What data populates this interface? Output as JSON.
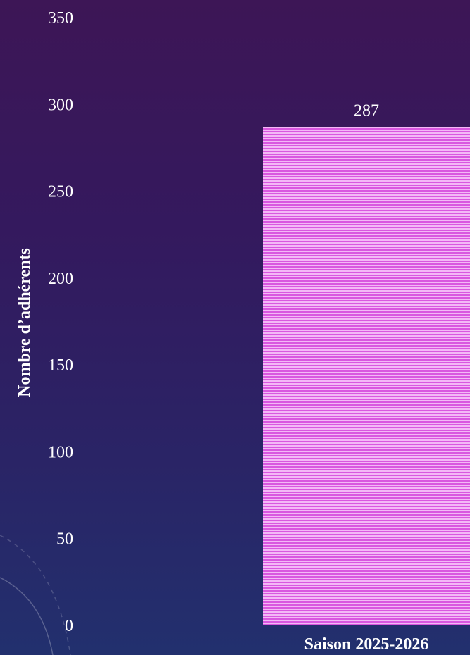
{
  "chart_data": {
    "type": "bar",
    "categories": [
      "Saison 2025-2026"
    ],
    "values": [
      287
    ],
    "data_labels": [
      "287"
    ],
    "ylabel": "Nombre d’adhérents",
    "xlabel": "",
    "ylim": [
      0,
      350
    ],
    "yticks": [
      0,
      50,
      100,
      150,
      200,
      250,
      300,
      350
    ],
    "grid": false,
    "legend": "none",
    "colors": {
      "bar_light": "#f3b8f6",
      "bar_dark": "#d957e0",
      "text": "#ffffff"
    }
  }
}
